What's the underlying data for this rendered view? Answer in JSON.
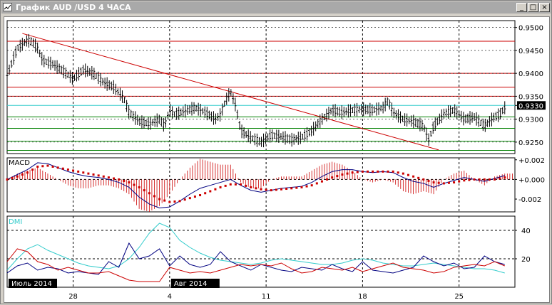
{
  "window": {
    "title": "График AUD /USD  4 ЧАСА",
    "minimize_glyph": "_",
    "maximize_glyph": "□",
    "close_glyph": "×",
    "app_icon": "chart-icon"
  },
  "colors": {
    "price": "#000000",
    "trendline": "#cc0000",
    "resistance": "#cc0000",
    "support": "#008000",
    "current_level": "#33cccc",
    "macd_line": "#000080",
    "macd_signal": "#cc0000",
    "macd_hist": "#cc0000",
    "dmi_adx": "#33cccc",
    "dmi_plus": "#000080",
    "dmi_minus": "#cc0000",
    "grid": "#000000"
  },
  "chart_data": [
    {
      "type": "line",
      "panel": "price",
      "y_ticks": [
        "0.9500",
        "0.9450",
        "0.9400",
        "0.9350",
        "0.9330",
        "0.9300",
        "0.9250"
      ],
      "y_tick_values": [
        0.95,
        0.945,
        0.94,
        0.935,
        0.933,
        0.93,
        0.925
      ],
      "current_price": "0.9330",
      "ylim": [
        0.9225,
        0.9515
      ],
      "xlim": [
        0,
        100
      ],
      "x_ticks": [
        {
          "x": 13,
          "label": "28"
        },
        {
          "x": 32,
          "label": "4"
        },
        {
          "x": 51,
          "label": "11"
        },
        {
          "x": 70,
          "label": "18"
        },
        {
          "x": 89,
          "label": "25"
        }
      ],
      "resistance_levels": [
        0.947,
        0.94,
        0.937,
        0.935
      ],
      "current_level": 0.933,
      "support_levels": [
        0.9305,
        0.928,
        0.9252,
        0.9232
      ],
      "trendline": {
        "x": [
          3,
          85
        ],
        "y": [
          0.9487,
          0.9233
        ]
      },
      "series": [
        {
          "x": [
            0,
            2,
            4,
            5,
            6,
            7,
            9,
            11,
            13,
            15,
            17,
            19,
            21,
            23,
            24,
            25,
            26,
            28,
            30,
            31,
            32,
            33,
            35,
            37,
            39,
            41,
            42,
            43,
            44,
            45,
            46,
            48,
            50,
            52,
            54,
            56,
            58,
            60,
            62,
            64,
            66,
            68,
            70,
            72,
            74,
            75,
            76,
            78,
            80,
            82,
            83,
            84,
            86,
            88,
            90,
            92,
            93,
            94,
            96,
            97,
            98
          ],
          "y": [
            0.9395,
            0.9455,
            0.9472,
            0.9468,
            0.9455,
            0.9428,
            0.942,
            0.9405,
            0.9388,
            0.9408,
            0.94,
            0.938,
            0.937,
            0.9345,
            0.9315,
            0.9305,
            0.9295,
            0.929,
            0.93,
            0.9285,
            0.932,
            0.931,
            0.9318,
            0.9325,
            0.9315,
            0.93,
            0.931,
            0.934,
            0.936,
            0.933,
            0.9275,
            0.926,
            0.925,
            0.9265,
            0.9262,
            0.9255,
            0.926,
            0.9275,
            0.93,
            0.932,
            0.9315,
            0.932,
            0.9322,
            0.932,
            0.9325,
            0.934,
            0.9315,
            0.93,
            0.9295,
            0.9285,
            0.9255,
            0.9285,
            0.9312,
            0.932,
            0.93,
            0.9305,
            0.9295,
            0.9285,
            0.9305,
            0.931,
            0.9325
          ]
        }
      ]
    },
    {
      "type": "line",
      "panel": "macd",
      "title": "MACD",
      "y_ticks": [
        "+0.002",
        "+0.000",
        "-0.002"
      ],
      "y_tick_values": [
        0.002,
        0.0,
        -0.002
      ],
      "ylim": [
        -0.0033,
        0.0022
      ],
      "xlim": [
        0,
        100
      ],
      "zero_line": 0.0,
      "series": [
        {
          "name": "MACD",
          "x": [
            0,
            2,
            4,
            6,
            8,
            10,
            12,
            14,
            16,
            18,
            20,
            22,
            24,
            26,
            28,
            30,
            32,
            34,
            36,
            38,
            40,
            42,
            44,
            46,
            48,
            50,
            52,
            54,
            56,
            58,
            60,
            62,
            64,
            66,
            68,
            70,
            72,
            74,
            76,
            78,
            80,
            82,
            84,
            86,
            88,
            90,
            92,
            94,
            96,
            98
          ],
          "y": [
            0.0,
            0.0005,
            0.001,
            0.0017,
            0.0016,
            0.0012,
            0.0008,
            0.0005,
            0.0003,
            0.0002,
            0.0,
            -0.0003,
            -0.0008,
            -0.0018,
            -0.0025,
            -0.0029,
            -0.0028,
            -0.0022,
            -0.0015,
            -0.0009,
            -0.0006,
            -0.0003,
            0.0,
            -0.0006,
            -0.0011,
            -0.0013,
            -0.0011,
            -0.0009,
            -0.0008,
            -0.0007,
            -0.0003,
            0.0003,
            0.0008,
            0.001,
            0.001,
            0.0008,
            0.0007,
            0.0008,
            0.0007,
            0.0002,
            -0.0002,
            -0.0004,
            -0.0008,
            -0.0004,
            -0.0001,
            0.0002,
            0.0,
            -0.0002,
            0.0001,
            0.0004
          ]
        },
        {
          "name": "Signal",
          "x": [
            0,
            2,
            4,
            6,
            8,
            10,
            12,
            14,
            16,
            18,
            20,
            22,
            24,
            26,
            28,
            30,
            32,
            34,
            36,
            38,
            40,
            42,
            44,
            46,
            48,
            50,
            52,
            54,
            56,
            58,
            60,
            62,
            64,
            66,
            68,
            70,
            72,
            74,
            76,
            78,
            80,
            82,
            84,
            86,
            88,
            90,
            92,
            94,
            96,
            98
          ],
          "y": [
            0.0,
            0.0003,
            0.0007,
            0.0013,
            0.0014,
            0.0012,
            0.001,
            0.0008,
            0.0006,
            0.0004,
            0.0002,
            0.0,
            -0.0003,
            -0.0008,
            -0.0014,
            -0.002,
            -0.0023,
            -0.0022,
            -0.0019,
            -0.0016,
            -0.0012,
            -0.0008,
            -0.0005,
            -0.0005,
            -0.0008,
            -0.001,
            -0.0011,
            -0.001,
            -0.0009,
            -0.0008,
            -0.0006,
            -0.0002,
            0.0002,
            0.0005,
            0.0007,
            0.0008,
            0.0008,
            0.0008,
            0.0008,
            0.0006,
            0.0003,
            0.0,
            -0.0003,
            -0.0004,
            -0.0003,
            -0.0001,
            0.0,
            0.0,
            0.0,
            0.0002
          ]
        }
      ]
    },
    {
      "type": "line",
      "panel": "dmi",
      "title": "DMI",
      "y_ticks": [
        "40",
        "20"
      ],
      "y_tick_values": [
        40,
        20
      ],
      "ylim": [
        0,
        50
      ],
      "xlim": [
        0,
        100
      ],
      "reference_lines": [
        40,
        20
      ],
      "series": [
        {
          "name": "ADX",
          "x": [
            0,
            2,
            4,
            6,
            8,
            10,
            12,
            14,
            16,
            18,
            20,
            22,
            24,
            26,
            28,
            30,
            32,
            34,
            36,
            38,
            40,
            42,
            44,
            46,
            48,
            50,
            52,
            54,
            56,
            58,
            60,
            62,
            64,
            66,
            68,
            70,
            72,
            74,
            76,
            78,
            80,
            82,
            84,
            86,
            88,
            90,
            92,
            94,
            96,
            98
          ],
          "y": [
            12,
            20,
            27,
            30,
            26,
            23,
            20,
            17,
            15,
            14,
            13,
            15,
            20,
            28,
            38,
            45,
            42,
            33,
            28,
            24,
            21,
            19,
            18,
            17,
            16,
            17,
            19,
            20,
            19,
            18,
            17,
            16,
            16,
            17,
            19,
            20,
            19,
            17,
            16,
            15,
            15,
            16,
            17,
            16,
            15,
            14,
            13,
            13,
            12,
            10
          ]
        },
        {
          "name": "+DI",
          "x": [
            0,
            2,
            4,
            6,
            8,
            10,
            12,
            14,
            16,
            18,
            20,
            22,
            24,
            26,
            28,
            30,
            32,
            34,
            36,
            38,
            40,
            42,
            44,
            46,
            48,
            50,
            52,
            54,
            56,
            58,
            60,
            62,
            64,
            66,
            68,
            70,
            72,
            74,
            76,
            78,
            80,
            82,
            84,
            86,
            88,
            90,
            92,
            94,
            96,
            98
          ],
          "y": [
            10,
            15,
            17,
            12,
            14,
            13,
            10,
            11,
            10,
            9,
            18,
            14,
            31,
            20,
            22,
            27,
            15,
            22,
            16,
            14,
            16,
            25,
            18,
            15,
            12,
            16,
            14,
            12,
            11,
            14,
            13,
            12,
            16,
            13,
            11,
            18,
            12,
            11,
            10,
            12,
            14,
            22,
            18,
            15,
            17,
            13,
            14,
            22,
            18,
            16
          ]
        },
        {
          "name": "-DI",
          "x": [
            0,
            2,
            4,
            6,
            8,
            10,
            12,
            14,
            16,
            18,
            20,
            22,
            24,
            26,
            28,
            30,
            32,
            34,
            36,
            38,
            40,
            42,
            44,
            46,
            48,
            50,
            52,
            54,
            56,
            58,
            60,
            62,
            64,
            66,
            68,
            70,
            72,
            74,
            76,
            78,
            80,
            82,
            84,
            86,
            88,
            90,
            92,
            94,
            96,
            98
          ],
          "y": [
            18,
            27,
            25,
            18,
            16,
            12,
            14,
            12,
            10,
            10,
            11,
            8,
            5,
            4,
            4,
            4,
            14,
            12,
            10,
            11,
            10,
            12,
            14,
            16,
            15,
            16,
            15,
            17,
            13,
            10,
            11,
            14,
            13,
            12,
            14,
            11,
            13,
            15,
            17,
            14,
            13,
            12,
            10,
            11,
            14,
            15,
            16,
            15,
            18,
            15
          ]
        }
      ]
    }
  ],
  "x_axis": {
    "ticks": [
      {
        "x": 13,
        "label": "28"
      },
      {
        "x": 32,
        "label": "4"
      },
      {
        "x": 51,
        "label": "11"
      },
      {
        "x": 70,
        "label": "18"
      },
      {
        "x": 89,
        "label": "25"
      }
    ],
    "month_labels": [
      {
        "x": 0,
        "label": "Июль 2014"
      },
      {
        "x": 32,
        "label": "Авг 2014"
      }
    ]
  }
}
